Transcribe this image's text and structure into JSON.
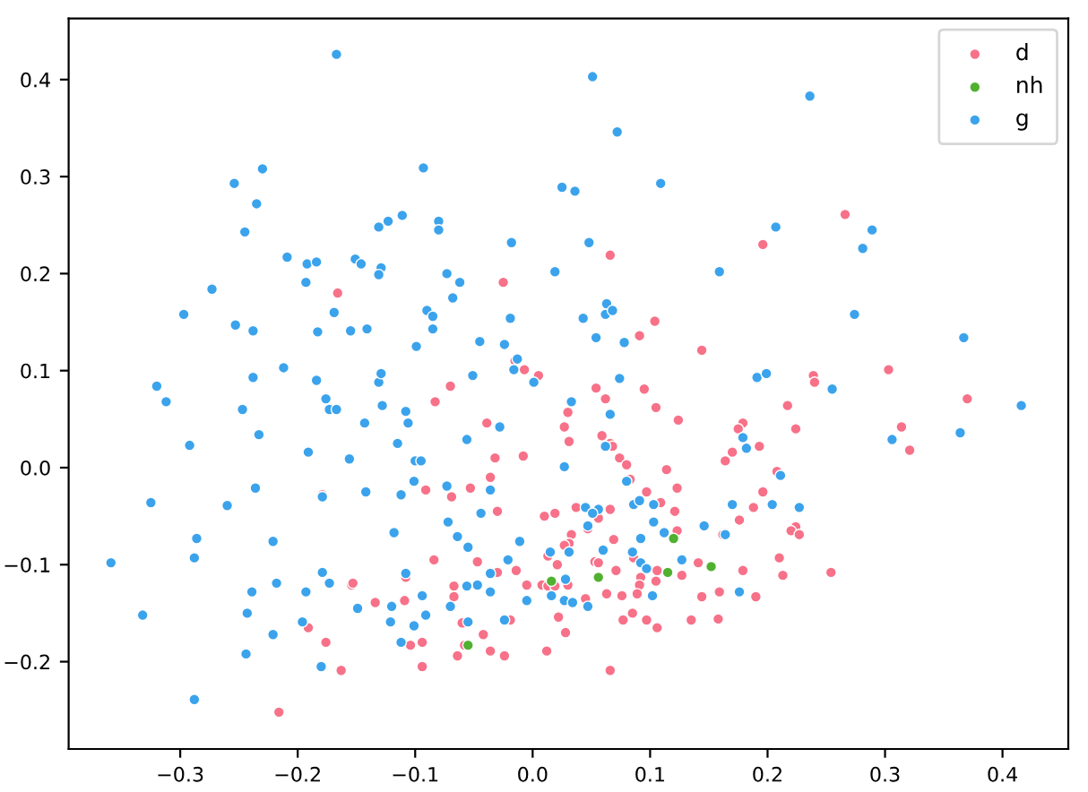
{
  "chart_data": {
    "type": "scatter",
    "marker": "circle",
    "legend": "top right",
    "grid": false,
    "xlim": [
      -0.395,
      0.456
    ],
    "ylim": [
      -0.29,
      0.463
    ],
    "xticks": [
      {
        "value": -0.3,
        "label": "−0.3"
      },
      {
        "value": -0.2,
        "label": "−0.2"
      },
      {
        "value": -0.1,
        "label": "−0.1"
      },
      {
        "value": 0.0,
        "label": "0.0"
      },
      0.1,
      0.2,
      0.3,
      0.4
    ],
    "yticks": [
      {
        "value": -0.2,
        "label": "−0.2"
      },
      {
        "value": -0.1,
        "label": "−0.1"
      },
      {
        "value": 0.0,
        "label": "0.0"
      },
      0.1,
      0.2,
      0.3,
      0.4
    ],
    "series": [
      {
        "name": "d",
        "color": "#f77189",
        "x": [
          -0.025,
          -0.166,
          -0.015,
          -0.007,
          -0.07,
          0.266,
          0.196,
          0.066,
          0.104,
          0.091,
          0.144,
          0.303,
          0.005,
          0.239,
          0.24,
          0.054,
          0.095,
          -0.083,
          -0.039,
          -0.032,
          -0.008,
          -0.036,
          -0.091,
          -0.053,
          -0.069,
          -0.179,
          -0.03,
          -0.084,
          -0.047,
          -0.03,
          -0.014,
          -0.154,
          -0.153,
          -0.108,
          -0.067,
          -0.067,
          -0.005,
          -0.134,
          -0.109,
          -0.019,
          -0.06,
          -0.191,
          -0.176,
          -0.094,
          -0.104,
          -0.042,
          -0.058,
          -0.036,
          -0.064,
          -0.024,
          -0.094,
          -0.163,
          -0.216,
          0.062,
          0.105,
          0.217,
          0.37,
          0.03,
          0.124,
          0.027,
          0.179,
          0.175,
          0.224,
          0.314,
          0.321,
          0.059,
          0.066,
          0.068,
          0.031,
          0.193,
          0.17,
          0.164,
          0.074,
          0.08,
          0.114,
          0.208,
          0.083,
          0.123,
          0.097,
          0.196,
          0.01,
          0.019,
          0.037,
          0.066,
          0.109,
          0.121,
          0.188,
          0.176,
          0.047,
          0.056,
          0.123,
          0.162,
          0.224,
          0.22,
          0.227,
          0.033,
          0.031,
          0.027,
          0.069,
          0.013,
          0.086,
          0.141,
          0.21,
          0.021,
          0.053,
          0.056,
          0.071,
          0.106,
          0.179,
          0.254,
          0.127,
          0.213,
          0.092,
          0.008,
          0.013,
          0.019,
          0.03,
          0.091,
          0.105,
          0.063,
          0.076,
          0.089,
          0.159,
          0.045,
          0.144,
          0.19,
          0.022,
          0.077,
          0.085,
          0.097,
          0.135,
          0.158,
          0.106,
          0.028,
          0.012,
          0.066
        ],
        "values": [
          0.191,
          0.18,
          0.11,
          0.101,
          0.084,
          0.261,
          0.23,
          0.219,
          0.151,
          0.136,
          0.121,
          0.101,
          0.095,
          0.095,
          0.088,
          0.082,
          0.081,
          0.068,
          0.046,
          0.01,
          0.012,
          -0.01,
          -0.023,
          -0.021,
          -0.03,
          -0.028,
          -0.045,
          -0.095,
          -0.097,
          -0.108,
          -0.106,
          -0.121,
          -0.119,
          -0.113,
          -0.122,
          -0.133,
          -0.121,
          -0.139,
          -0.137,
          -0.157,
          -0.16,
          -0.165,
          -0.18,
          -0.18,
          -0.183,
          -0.172,
          -0.183,
          -0.189,
          -0.194,
          -0.194,
          -0.205,
          -0.209,
          -0.252,
          0.071,
          0.062,
          0.064,
          0.071,
          0.057,
          0.049,
          0.042,
          0.046,
          0.04,
          0.04,
          0.042,
          0.018,
          0.033,
          0.025,
          0.022,
          0.027,
          0.022,
          0.016,
          0.007,
          0.01,
          0.003,
          -0.002,
          -0.004,
          -0.012,
          -0.021,
          -0.025,
          -0.025,
          -0.05,
          -0.047,
          -0.041,
          -0.043,
          -0.036,
          -0.045,
          -0.041,
          -0.054,
          -0.063,
          -0.052,
          -0.065,
          -0.069,
          -0.061,
          -0.065,
          -0.069,
          -0.069,
          -0.078,
          -0.08,
          -0.074,
          -0.091,
          -0.093,
          -0.098,
          -0.093,
          -0.1,
          -0.097,
          -0.098,
          -0.106,
          -0.106,
          -0.106,
          -0.108,
          -0.111,
          -0.111,
          -0.113,
          -0.121,
          -0.122,
          -0.122,
          -0.121,
          -0.121,
          -0.117,
          -0.13,
          -0.132,
          -0.13,
          -0.128,
          -0.135,
          -0.133,
          -0.133,
          -0.154,
          -0.157,
          -0.15,
          -0.157,
          -0.157,
          -0.156,
          -0.165,
          -0.17,
          -0.189,
          -0.209
        ]
      },
      {
        "name": "nh",
        "color": "#50b131",
        "x": [
          -0.055,
          0.12,
          0.115,
          0.152,
          0.056,
          0.016
        ],
        "values": [
          -0.183,
          -0.073,
          -0.108,
          -0.102,
          -0.113,
          -0.117
        ]
      },
      {
        "name": "g",
        "color": "#3ba3ec",
        "x": [
          -0.167,
          -0.23,
          -0.254,
          -0.093,
          -0.235,
          -0.245,
          -0.111,
          -0.131,
          -0.123,
          -0.08,
          -0.08,
          -0.018,
          -0.209,
          -0.192,
          -0.184,
          -0.151,
          -0.146,
          -0.129,
          -0.131,
          -0.073,
          -0.062,
          -0.193,
          -0.273,
          -0.169,
          -0.09,
          -0.085,
          -0.068,
          -0.019,
          -0.297,
          -0.253,
          -0.238,
          -0.183,
          -0.155,
          -0.141,
          -0.085,
          -0.099,
          -0.045,
          -0.024,
          -0.013,
          -0.016,
          0.001,
          -0.051,
          -0.238,
          -0.212,
          -0.32,
          -0.184,
          -0.131,
          -0.129,
          0.051,
          0.236,
          0.072,
          0.025,
          0.036,
          0.109,
          0.207,
          0.289,
          0.281,
          0.048,
          0.019,
          0.159,
          0.063,
          0.062,
          0.068,
          0.043,
          0.274,
          0.054,
          0.078,
          0.367,
          0.074,
          0.191,
          0.199,
          0.255,
          -0.312,
          -0.247,
          -0.176,
          -0.173,
          -0.167,
          -0.128,
          -0.108,
          -0.143,
          -0.106,
          -0.233,
          -0.292,
          -0.115,
          -0.056,
          -0.028,
          -0.191,
          -0.156,
          -0.1,
          -0.095,
          -0.236,
          -0.142,
          -0.101,
          -0.073,
          -0.036,
          -0.325,
          -0.26,
          -0.179,
          -0.112,
          -0.044,
          -0.072,
          -0.286,
          -0.221,
          -0.064,
          -0.055,
          -0.118,
          -0.011,
          -0.288,
          -0.359,
          -0.021,
          -0.179,
          -0.108,
          -0.173,
          -0.218,
          -0.239,
          -0.036,
          -0.193,
          -0.094,
          -0.047,
          -0.056,
          -0.036,
          -0.005,
          -0.07,
          -0.149,
          -0.12,
          -0.243,
          -0.332,
          -0.091,
          -0.196,
          -0.121,
          -0.101,
          -0.055,
          -0.024,
          -0.221,
          -0.112,
          -0.244,
          -0.18,
          -0.288,
          0.033,
          0.416,
          0.066,
          0.306,
          0.364,
          0.062,
          0.179,
          0.182,
          0.027,
          0.211,
          0.08,
          0.045,
          0.056,
          0.051,
          0.086,
          0.091,
          0.103,
          0.17,
          0.204,
          0.227,
          0.047,
          0.103,
          0.112,
          0.146,
          0.164,
          0.092,
          0.015,
          0.031,
          0.06,
          0.085,
          0.127,
          0.092,
          0.097,
          0.028,
          0.016,
          0.102,
          0.176,
          0.027,
          0.034,
          0.047
        ],
        "values": [
          0.426,
          0.308,
          0.293,
          0.309,
          0.272,
          0.243,
          0.26,
          0.248,
          0.254,
          0.254,
          0.245,
          0.232,
          0.217,
          0.21,
          0.212,
          0.215,
          0.21,
          0.206,
          0.199,
          0.2,
          0.191,
          0.191,
          0.184,
          0.16,
          0.162,
          0.156,
          0.175,
          0.154,
          0.158,
          0.147,
          0.141,
          0.14,
          0.141,
          0.143,
          0.143,
          0.125,
          0.13,
          0.127,
          0.112,
          0.101,
          0.088,
          0.095,
          0.093,
          0.103,
          0.084,
          0.09,
          0.088,
          0.097,
          0.403,
          0.383,
          0.346,
          0.289,
          0.285,
          0.293,
          0.248,
          0.245,
          0.226,
          0.232,
          0.202,
          0.202,
          0.169,
          0.158,
          0.162,
          0.154,
          0.158,
          0.134,
          0.129,
          0.134,
          0.092,
          0.093,
          0.097,
          0.081,
          0.068,
          0.06,
          0.071,
          0.06,
          0.06,
          0.064,
          0.058,
          0.046,
          0.046,
          0.034,
          0.023,
          0.025,
          0.029,
          0.042,
          0.016,
          0.009,
          0.007,
          0.007,
          -0.021,
          -0.025,
          -0.014,
          -0.019,
          -0.023,
          -0.036,
          -0.039,
          -0.03,
          -0.028,
          -0.047,
          -0.056,
          -0.073,
          -0.076,
          -0.071,
          -0.082,
          -0.067,
          -0.076,
          -0.093,
          -0.098,
          -0.095,
          -0.108,
          -0.109,
          -0.119,
          -0.119,
          -0.128,
          -0.109,
          -0.128,
          -0.132,
          -0.121,
          -0.122,
          -0.128,
          -0.137,
          -0.143,
          -0.145,
          -0.143,
          -0.15,
          -0.152,
          -0.152,
          -0.159,
          -0.159,
          -0.163,
          -0.159,
          -0.157,
          -0.172,
          -0.18,
          -0.192,
          -0.205,
          -0.239,
          0.068,
          0.064,
          0.055,
          0.029,
          0.036,
          0.022,
          0.031,
          0.02,
          0.001,
          -0.008,
          -0.014,
          -0.041,
          -0.043,
          -0.047,
          -0.038,
          -0.034,
          -0.038,
          -0.038,
          -0.038,
          -0.041,
          -0.06,
          -0.056,
          -0.067,
          -0.06,
          -0.069,
          -0.073,
          -0.087,
          -0.087,
          -0.085,
          -0.087,
          -0.095,
          -0.098,
          -0.104,
          -0.115,
          -0.132,
          -0.132,
          -0.128,
          -0.137,
          -0.139,
          -0.143
        ]
      }
    ]
  }
}
